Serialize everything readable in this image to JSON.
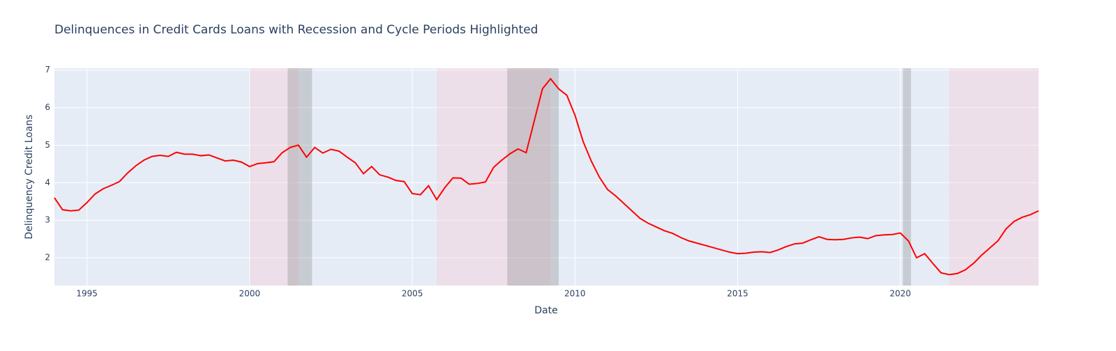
{
  "chart_data": {
    "type": "line",
    "title": "Delinquences in Credit Cards Loans with Recession and Cycle Periods Highlighted",
    "x_label": "Date",
    "y_label": "Delinquency Credit Loans",
    "x": [
      1994,
      1994.25,
      1994.5,
      1994.75,
      1995,
      1995.25,
      1995.5,
      1995.75,
      1996,
      1996.25,
      1996.5,
      1996.75,
      1997,
      1997.25,
      1997.5,
      1997.75,
      1998,
      1998.25,
      1998.5,
      1998.75,
      1999,
      1999.25,
      1999.5,
      1999.75,
      2000,
      2000.25,
      2000.5,
      2000.75,
      2001,
      2001.25,
      2001.5,
      2001.75,
      2002,
      2002.25,
      2002.5,
      2002.75,
      2003,
      2003.25,
      2003.5,
      2003.75,
      2004,
      2004.25,
      2004.5,
      2004.75,
      2005,
      2005.25,
      2005.5,
      2005.75,
      2006,
      2006.25,
      2006.5,
      2006.75,
      2007,
      2007.25,
      2007.5,
      2007.75,
      2008,
      2008.25,
      2008.5,
      2008.75,
      2009,
      2009.25,
      2009.5,
      2009.75,
      2010,
      2010.25,
      2010.5,
      2010.75,
      2011,
      2011.25,
      2011.5,
      2011.75,
      2012,
      2012.25,
      2012.5,
      2012.75,
      2013,
      2013.25,
      2013.5,
      2013.75,
      2014,
      2014.25,
      2014.5,
      2014.75,
      2015,
      2015.25,
      2015.5,
      2015.75,
      2016,
      2016.25,
      2016.5,
      2016.75,
      2017,
      2017.25,
      2017.5,
      2017.75,
      2018,
      2018.25,
      2018.5,
      2018.75,
      2019,
      2019.25,
      2019.5,
      2019.75,
      2020,
      2020.25,
      2020.5,
      2020.75,
      2021,
      2021.25,
      2021.5,
      2021.75,
      2022,
      2022.25,
      2022.5,
      2022.75,
      2023,
      2023.25,
      2023.5,
      2023.75,
      2024,
      2024.25
    ],
    "series": [
      {
        "color": "#ff0000",
        "values": [
          3.6,
          3.28,
          3.25,
          3.27,
          3.47,
          3.7,
          3.84,
          3.93,
          4.03,
          4.26,
          4.45,
          4.6,
          4.7,
          4.73,
          4.7,
          4.81,
          4.76,
          4.76,
          4.72,
          4.74,
          4.66,
          4.58,
          4.6,
          4.55,
          4.43,
          4.51,
          4.53,
          4.56,
          4.8,
          4.94,
          5.0,
          4.68,
          4.94,
          4.79,
          4.89,
          4.84,
          4.68,
          4.53,
          4.24,
          4.43,
          4.21,
          4.15,
          4.06,
          4.03,
          3.71,
          3.68,
          3.92,
          3.55,
          3.87,
          4.13,
          4.12,
          3.96,
          3.98,
          4.02,
          4.41,
          4.6,
          4.77,
          4.9,
          4.8,
          5.65,
          6.5,
          6.77,
          6.5,
          6.33,
          5.8,
          5.1,
          4.58,
          4.15,
          3.82,
          3.65,
          3.45,
          3.25,
          3.05,
          2.92,
          2.82,
          2.72,
          2.65,
          2.54,
          2.45,
          2.39,
          2.33,
          2.27,
          2.21,
          2.15,
          2.11,
          2.12,
          2.15,
          2.16,
          2.14,
          2.21,
          2.3,
          2.37,
          2.39,
          2.48,
          2.56,
          2.49,
          2.48,
          2.49,
          2.53,
          2.55,
          2.51,
          2.59,
          2.61,
          2.62,
          2.66,
          2.45,
          2.0,
          2.11,
          1.85,
          1.6,
          1.55,
          1.58,
          1.68,
          1.85,
          2.07,
          2.26,
          2.45,
          2.77,
          2.97,
          3.08,
          3.15,
          3.25
        ]
      }
    ],
    "cycles": {
      "color": "#ffc0cb",
      "periods": [
        [
          2000,
          2001.5
        ],
        [
          2005.75,
          2009.25
        ],
        [
          2021.5,
          2024.25
        ]
      ]
    },
    "recessions": {
      "color": "#808080",
      "periods": [
        [
          2001.17,
          2001.92
        ],
        [
          2007.92,
          2009.5
        ],
        [
          2020.08,
          2020.33
        ]
      ]
    },
    "xlim": [
      1994,
      2024.25
    ],
    "ylim": [
      1.26,
      7.05
    ],
    "xticks": [
      1995,
      2000,
      2005,
      2010,
      2015,
      2020
    ],
    "yticks": [
      2,
      3,
      4,
      5,
      6,
      7
    ],
    "grid": true
  }
}
